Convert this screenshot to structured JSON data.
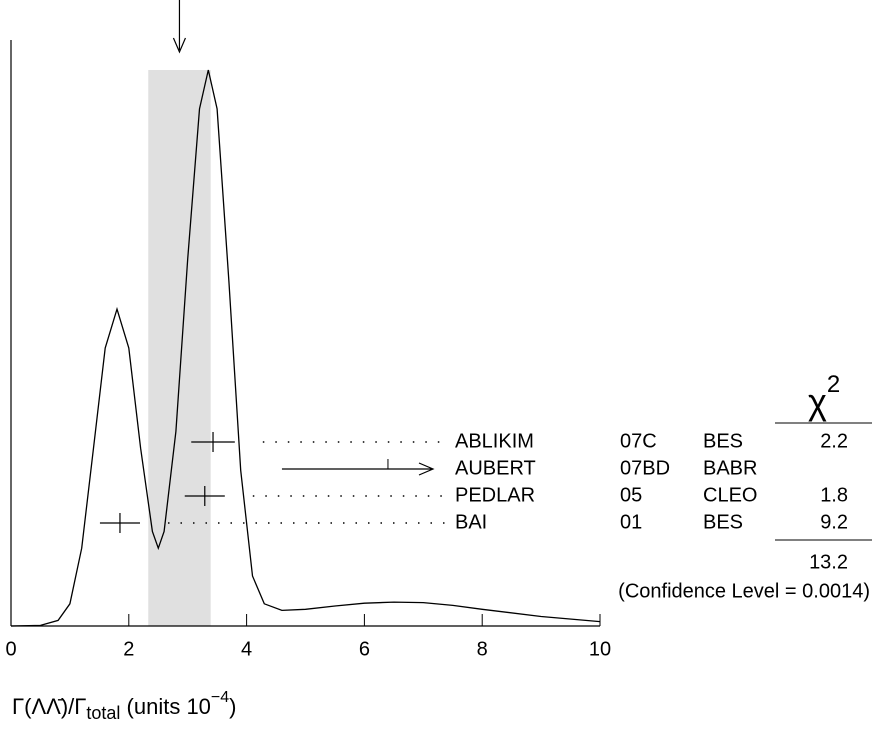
{
  "chart_data": {
    "type": "ideogram",
    "xlim": [
      0,
      10
    ],
    "xticks": [
      0,
      2,
      4,
      6,
      8,
      10
    ],
    "ylim": [
      0,
      1
    ],
    "x_label": {
      "prefix": "Γ(ΛΛ̄)/Γ",
      "subscript": "total",
      "units": " (units 10",
      "exponent": "−4",
      "suffix": ")"
    },
    "average": {
      "value": 2.86,
      "error": 0.53
    },
    "curve": {
      "x": [
        0,
        0.5,
        0.8,
        1.0,
        1.2,
        1.4,
        1.6,
        1.8,
        2.0,
        2.2,
        2.4,
        2.5,
        2.6,
        2.8,
        3.0,
        3.2,
        3.35,
        3.5,
        3.7,
        3.9,
        4.1,
        4.3,
        4.6,
        5,
        5.5,
        6,
        6.5,
        7,
        7.5,
        8,
        9,
        10
      ],
      "y": [
        0,
        0.001,
        0.01,
        0.04,
        0.14,
        0.32,
        0.5,
        0.57,
        0.5,
        0.32,
        0.17,
        0.14,
        0.17,
        0.35,
        0.66,
        0.93,
        1.0,
        0.93,
        0.62,
        0.28,
        0.09,
        0.04,
        0.028,
        0.03,
        0.036,
        0.041,
        0.043,
        0.042,
        0.037,
        0.03,
        0.017,
        0.008
      ]
    },
    "chi2_header": {
      "symbol": "χ",
      "exponent": "2"
    },
    "measurements": [
      {
        "name": "ABLIKIM",
        "year": "07C",
        "experiment": "BES",
        "value": 3.43,
        "error": 0.37,
        "chi2": 2.2
      },
      {
        "name": "AUBERT",
        "year": "07BD",
        "experiment": "BABR",
        "value": 6.4,
        "error": 1.8,
        "chi2": null
      },
      {
        "name": "PEDLAR",
        "year": "05",
        "experiment": "CLEO",
        "value": 3.29,
        "error": 0.34,
        "chi2": 1.8
      },
      {
        "name": "BAI",
        "year": "01",
        "experiment": "BES",
        "value": 1.85,
        "error": 0.34,
        "chi2": 9.2
      }
    ],
    "chi2_total": 13.2,
    "confidence_label": "(Confidence Level = 0.0014)"
  }
}
